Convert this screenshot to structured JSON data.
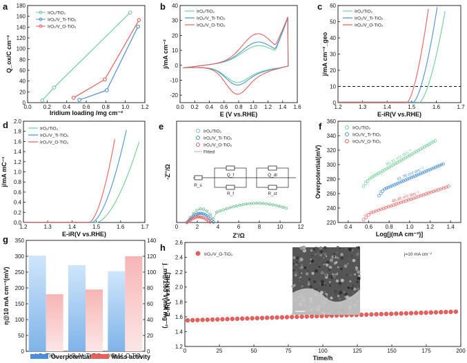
{
  "colors": {
    "green": "#6fcf97",
    "blue": "#4a90d9",
    "red": "#e8605c",
    "bar_blue": "#7fb3e8",
    "bar_red": "#f2a0a0"
  },
  "chart_data": [
    {
      "panel": "a",
      "type": "line",
      "xlabel": "Iridium loading /mg cm⁻²",
      "ylabel": "Q_ox/C cm⁻²",
      "xlim": [
        0.0,
        1.2
      ],
      "ylim": [
        0,
        180
      ],
      "xticks": [
        "0.0",
        "0.2",
        "0.4",
        "0.6",
        "0.8",
        "1.0",
        "1.2"
      ],
      "yticks": [
        "0",
        "20",
        "40",
        "60",
        "80",
        "100",
        "120",
        "140",
        "160",
        "180"
      ],
      "legend": "top-left",
      "series": [
        {
          "name": "IrO₂/TiO₂",
          "color": "#6fcf97",
          "points": [
            [
              0.15,
              4
            ],
            [
              0.27,
              28
            ],
            [
              1.05,
              167
            ]
          ]
        },
        {
          "name": "IrO₂/V_Ti-TiO₂",
          "color": "#4a90d9",
          "points": [
            [
              0.53,
              5
            ],
            [
              0.81,
              23
            ],
            [
              1.13,
              141
            ]
          ]
        },
        {
          "name": "IrO₂/V_O-TiO₂",
          "color": "#e8605c",
          "points": [
            [
              0.47,
              9
            ],
            [
              0.79,
              43
            ],
            [
              1.14,
              153
            ]
          ]
        }
      ]
    },
    {
      "panel": "b",
      "type": "line",
      "xlabel": "E (V vs.RHE)",
      "ylabel": "j/mA cm⁻²",
      "xlim": [
        0.0,
        1.6
      ],
      "ylim": [
        -25,
        40
      ],
      "xticks": [
        "0.0",
        "0.2",
        "0.4",
        "0.6",
        "0.8",
        "1.0",
        "1.2",
        "1.4",
        "1.6"
      ],
      "yticks": [
        "-20",
        "-10",
        "0",
        "10",
        "20",
        "30",
        "40"
      ],
      "legend": "top-left",
      "series": [
        {
          "name": "IrO₂/TiO₂",
          "color": "#6fcf97"
        },
        {
          "name": "IrO₂/V_Ti-TiO₂",
          "color": "#4a90d9"
        },
        {
          "name": "IrO₂/V_O-TiO₂",
          "color": "#e8605c"
        }
      ]
    },
    {
      "panel": "c",
      "type": "line",
      "xlabel": "E-iR(V vs.RHE)",
      "ylabel": "j/mA cm⁻²_geo",
      "xlim": [
        1.2,
        1.7
      ],
      "ylim": [
        0,
        60
      ],
      "xticks": [
        "1.2",
        "1.3",
        "1.4",
        "1.5",
        "1.6",
        "1.7"
      ],
      "yticks": [
        "0",
        "10",
        "20",
        "30",
        "40",
        "50",
        "60"
      ],
      "reference_line": 10,
      "legend": "top-left",
      "series": [
        {
          "name": "IrO₂/TiO₂",
          "color": "#6fcf97",
          "onset": 1.53,
          "end": 1.64
        },
        {
          "name": "IrO₂/V_Ti-TiO₂",
          "color": "#4a90d9",
          "onset": 1.505,
          "end": 1.605
        },
        {
          "name": "IrO₂/V_O-TiO₂",
          "color": "#e8605c",
          "onset": 1.48,
          "end": 1.57
        }
      ]
    },
    {
      "panel": "d",
      "type": "line",
      "xlabel": "E-iR(V vs.RHE)",
      "ylabel": "j/mA mC⁻¹",
      "xlim": [
        1.2,
        1.7
      ],
      "ylim": [
        0,
        2.0
      ],
      "xticks": [
        "1.2",
        "1.3",
        "1.4",
        "1.5",
        "1.6",
        "1.7"
      ],
      "yticks": [
        "0.0",
        "0.2",
        "0.4",
        "0.6",
        "0.8",
        "1.0",
        "1.2",
        "1.4",
        "1.6",
        "1.8",
        "2.0"
      ],
      "legend": "top-left",
      "series": [
        {
          "name": "IrO₂/TiO₂",
          "color": "#6fcf97",
          "onset": 1.5,
          "end": 1.68,
          "max": 1.65
        },
        {
          "name": "IrO₂/V_Ti-TiO₂",
          "color": "#4a90d9",
          "onset": 1.48,
          "end": 1.625,
          "max": 1.85
        },
        {
          "name": "IrO₂/V_O-TiO₂",
          "color": "#e8605c",
          "onset": 1.47,
          "end": 1.58,
          "max": 1.75
        }
      ]
    },
    {
      "panel": "e",
      "type": "scatter",
      "xlabel": "Z'/Ω",
      "ylabel": "-Z''/Ω",
      "xlim": [
        0,
        12
      ],
      "ylim": [
        0,
        10
      ],
      "xticks": [
        "0",
        "2",
        "4",
        "6",
        "8",
        "10",
        "12"
      ],
      "legend": "top-left",
      "circuit_labels": [
        "R_s",
        "Q_f",
        "R_f",
        "Q_dl",
        "R_ct"
      ],
      "series": [
        {
          "name": "IrO₂/TiO₂",
          "color": "#6fcf97"
        },
        {
          "name": "IrO₂/V_Ti-TiO₂",
          "color": "#4a90d9"
        },
        {
          "name": "IrO₂/V_O-TiO₂",
          "color": "#e8605c"
        },
        {
          "name": "Fitted",
          "color": "#333333"
        }
      ]
    },
    {
      "panel": "f",
      "type": "scatter",
      "xlabel": "Log[j(mA cm⁻²)]",
      "ylabel": "Overpotential(mV)",
      "xlim": [
        0.3,
        1.5
      ],
      "ylim": [
        220,
        360
      ],
      "xticks": [
        "0.4",
        "0.6",
        "0.8",
        "1.0",
        "1.2",
        "1.4"
      ],
      "yticks": [
        "220",
        "240",
        "260",
        "280",
        "300",
        "320",
        "340",
        "360"
      ],
      "legend": "top-left",
      "series": [
        {
          "name": "IrO₂/TiO₂",
          "color": "#6fcf97",
          "x0": 0.55,
          "y0": 276,
          "x1": 1.25,
          "y1": 333,
          "slope_label": "80.31 mV dec⁻¹"
        },
        {
          "name": "IrO₂/V_Ti-TiO₂",
          "color": "#4a90d9",
          "x0": 0.7,
          "y0": 263,
          "x1": 1.33,
          "y1": 301,
          "slope_label": "61.78 mV dec⁻¹"
        },
        {
          "name": "IrO₂/V_O-TiO₂",
          "color": "#e8605c",
          "x0": 0.55,
          "y0": 230,
          "x1": 1.38,
          "y1": 270,
          "slope_label": "48.45 mV dec⁻¹"
        }
      ]
    },
    {
      "panel": "g",
      "type": "bar",
      "categories": [
        "IrO₂/TiO₂",
        "IrO₂/V_Ti-TiO₂",
        "IrO₂/V_O-TiO₂"
      ],
      "ylabel": "η@10 mA cm⁻²(mV)",
      "y2label": "j_m@1.55 V(mA mg⁻¹)",
      "ylim": [
        0,
        350
      ],
      "y2lim": [
        0,
        140
      ],
      "yticks": [
        "0",
        "50",
        "100",
        "150",
        "200",
        "250",
        "300",
        "350"
      ],
      "y2ticks": [
        "0",
        "20",
        "40",
        "60",
        "80",
        "100",
        "120",
        "140"
      ],
      "legend_items": [
        "Overpotential",
        "Mass activity"
      ],
      "series": [
        {
          "name": "Overpotential",
          "color": "#7fb3e8",
          "values": [
            302,
            272,
            253
          ]
        },
        {
          "name": "Mass activity",
          "color": "#f2a0a0",
          "values": [
            72,
            78,
            120
          ]
        }
      ]
    },
    {
      "panel": "h",
      "type": "scatter",
      "xlabel": "Time/h",
      "ylabel": "E-iR(V vs.RHE)",
      "xlim": [
        0,
        200
      ],
      "ylim": [
        1.2,
        2.6
      ],
      "xticks": [
        "0",
        "25",
        "50",
        "75",
        "100",
        "125",
        "150",
        "175",
        "200"
      ],
      "yticks": [
        "1.2",
        "1.4",
        "1.6",
        "1.8",
        "2.0",
        "2.2",
        "2.4",
        "2.6"
      ],
      "annotation": "j=10 mA cm⁻²",
      "series": [
        {
          "name": "IrO₂/V_O-TiO₂",
          "color": "#e8605c",
          "start": 1.55,
          "end": 1.67
        }
      ]
    }
  ]
}
